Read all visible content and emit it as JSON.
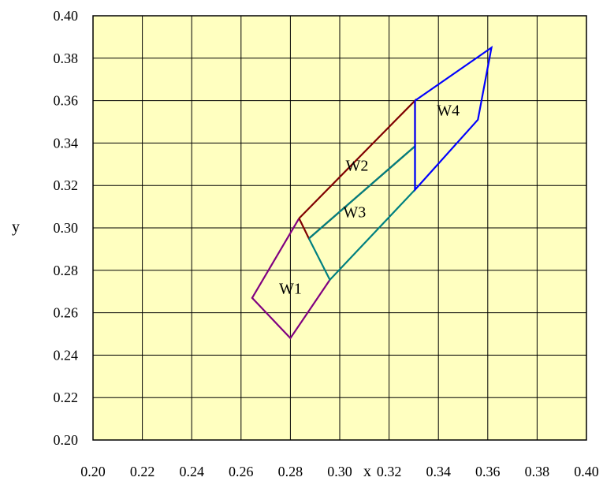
{
  "chart_data": {
    "type": "line",
    "title": "",
    "xlabel": "x",
    "ylabel": "y",
    "xlim": [
      0.2,
      0.4
    ],
    "ylim": [
      0.2,
      0.4
    ],
    "x_ticks": [
      "0.20",
      "0.22",
      "0.24",
      "0.26",
      "0.28",
      "0.30",
      "0.32",
      "0.34",
      "0.36",
      "0.38",
      "0.40"
    ],
    "y_ticks": [
      "0.20",
      "0.22",
      "0.24",
      "0.26",
      "0.28",
      "0.30",
      "0.32",
      "0.34",
      "0.36",
      "0.38",
      "0.40"
    ],
    "grid": true,
    "background_color": "#ffffc0",
    "series": [
      {
        "color": "#800080",
        "points": [
          [
            0.2835,
            0.3045
          ],
          [
            0.2645,
            0.267
          ],
          [
            0.28,
            0.248
          ],
          [
            0.296,
            0.2755
          ]
        ]
      },
      {
        "color": "#800000",
        "points": [
          [
            0.2835,
            0.3045
          ],
          [
            0.3305,
            0.36
          ],
          [
            0.3305,
            0.3385
          ],
          [
            0.2875,
            0.295
          ],
          [
            0.2835,
            0.3045
          ]
        ]
      },
      {
        "color": "#008080",
        "points": [
          [
            0.2875,
            0.295
          ],
          [
            0.296,
            0.2755
          ],
          [
            0.3305,
            0.318
          ],
          [
            0.3305,
            0.3385
          ],
          [
            0.2875,
            0.295
          ]
        ]
      },
      {
        "color": "#0000ff",
        "points": [
          [
            0.3305,
            0.36
          ],
          [
            0.3615,
            0.385
          ],
          [
            0.356,
            0.351
          ],
          [
            0.3305,
            0.318
          ],
          [
            0.3305,
            0.36
          ]
        ]
      }
    ],
    "labels": [
      {
        "text": "W1",
        "x": 0.28,
        "y": 0.269
      },
      {
        "text": "W2",
        "x": 0.307,
        "y": 0.327
      },
      {
        "text": "W3",
        "x": 0.306,
        "y": 0.305
      },
      {
        "text": "W4",
        "x": 0.344,
        "y": 0.353
      }
    ]
  }
}
